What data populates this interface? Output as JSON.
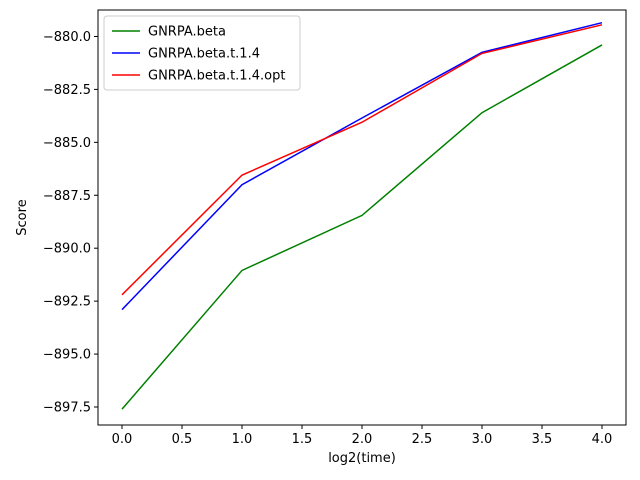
{
  "chart_data": {
    "type": "line",
    "title": "",
    "xlabel": "log2(time)",
    "ylabel": "Score",
    "xlim": [
      -0.2,
      4.2
    ],
    "ylim": [
      -898.35,
      -878.75
    ],
    "x_ticks": [
      0.0,
      0.5,
      1.0,
      1.5,
      2.0,
      2.5,
      3.0,
      3.5,
      4.0
    ],
    "x_tick_labels": [
      "0.0",
      "0.5",
      "1.0",
      "1.5",
      "2.0",
      "2.5",
      "3.0",
      "3.5",
      "4.0"
    ],
    "y_ticks": [
      -897.5,
      -895.0,
      -892.5,
      -890.0,
      -887.5,
      -885.0,
      -882.5,
      -880.0
    ],
    "y_tick_labels": [
      "−897.5",
      "−895.0",
      "−892.5",
      "−890.0",
      "−887.5",
      "−885.0",
      "−882.5",
      "−880.0"
    ],
    "grid": false,
    "legend_position": "top-left",
    "x": [
      0,
      1,
      2,
      3,
      4
    ],
    "series": [
      {
        "name": "GNRPA.beta",
        "color": "#008000",
        "values": [
          -897.6,
          -891.05,
          -888.45,
          -883.6,
          -880.4
        ]
      },
      {
        "name": "GNRPA.beta.t.1.4",
        "color": "#0000ff",
        "values": [
          -892.9,
          -887.0,
          -883.85,
          -880.75,
          -879.35
        ]
      },
      {
        "name": "GNRPA.beta.t.1.4.opt",
        "color": "#ff0000",
        "values": [
          -892.2,
          -886.55,
          -884.05,
          -880.8,
          -879.45
        ]
      }
    ]
  }
}
